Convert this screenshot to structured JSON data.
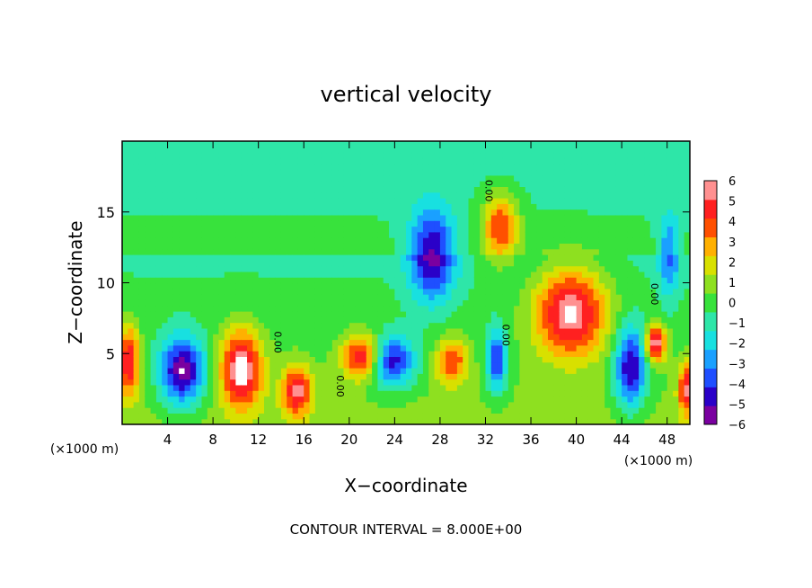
{
  "chart_data": {
    "type": "heatmap",
    "title": "vertical velocity",
    "xlabel": "X−coordinate",
    "ylabel": "Z−coordinate",
    "x_unit_label": "(×1000 m)",
    "y_unit_label": "(×1000 m)",
    "xlim": [
      0,
      50
    ],
    "ylim": [
      0,
      20
    ],
    "x_ticks": [
      4,
      8,
      12,
      16,
      20,
      24,
      28,
      32,
      36,
      40,
      44,
      48
    ],
    "y_ticks": [
      5,
      10,
      15
    ],
    "colorbar": {
      "min": -6,
      "max": 6,
      "tick_labels": [
        "6",
        "5",
        "4",
        "3",
        "2",
        "1",
        "0",
        "−1",
        "−2",
        "−3",
        "−4",
        "−5",
        "−6"
      ],
      "colors": [
        "#7a00a0",
        "#2a00c8",
        "#1f4fff",
        "#1aa0ff",
        "#18e0e0",
        "#2ee6a8",
        "#38e23c",
        "#8ee020",
        "#d8e000",
        "#ffb000",
        "#ff5000",
        "#ff2020",
        "#ff9090"
      ]
    },
    "footer": "CONTOUR INTERVAL = 8.000E+00",
    "contour_labels": [
      {
        "text": "0.00",
        "x": 32.0,
        "y": 16.5
      },
      {
        "text": "0.00",
        "x": 46.6,
        "y": 9.2
      },
      {
        "text": "0.00",
        "x": 33.5,
        "y": 6.3
      },
      {
        "text": "0.00",
        "x": 13.4,
        "y": 5.8
      },
      {
        "text": "0.00",
        "x": 18.9,
        "y": 2.7
      }
    ],
    "features": [
      {
        "kind": "updraft",
        "x": 39.5,
        "z": 8.0,
        "w": 6.0
      },
      {
        "kind": "updraft",
        "x": 33.3,
        "z": 14.0,
        "w": 4.5
      },
      {
        "kind": "updraft",
        "x": 10.5,
        "z": 4.0,
        "w": 6.0
      },
      {
        "kind": "updraft",
        "x": 15.4,
        "z": 2.4,
        "w": 5.0
      },
      {
        "kind": "updraft",
        "x": 29.0,
        "z": 4.5,
        "w": 4.0
      },
      {
        "kind": "updraft",
        "x": 0.6,
        "z": 4.5,
        "w": 5.0
      },
      {
        "kind": "updraft",
        "x": 21.3,
        "z": 4.8,
        "w": 6.0
      },
      {
        "kind": "updraft",
        "x": 47.0,
        "z": 5.8,
        "w": 6.0
      },
      {
        "kind": "updraft",
        "x": 49.8,
        "z": 2.5,
        "w": 5.0
      },
      {
        "kind": "downdraft",
        "x": 5.3,
        "z": 3.8,
        "w": -6.0
      },
      {
        "kind": "downdraft",
        "x": 23.5,
        "z": 4.5,
        "w": -5.5
      },
      {
        "kind": "downdraft",
        "x": 27.3,
        "z": 12.0,
        "w": -5.0
      },
      {
        "kind": "downdraft",
        "x": 44.8,
        "z": 4.0,
        "w": -5.5
      },
      {
        "kind": "downdraft",
        "x": 33.0,
        "z": 4.5,
        "w": -4.5
      },
      {
        "kind": "downdraft",
        "x": 48.2,
        "z": 12.0,
        "w": -3.0
      }
    ]
  }
}
